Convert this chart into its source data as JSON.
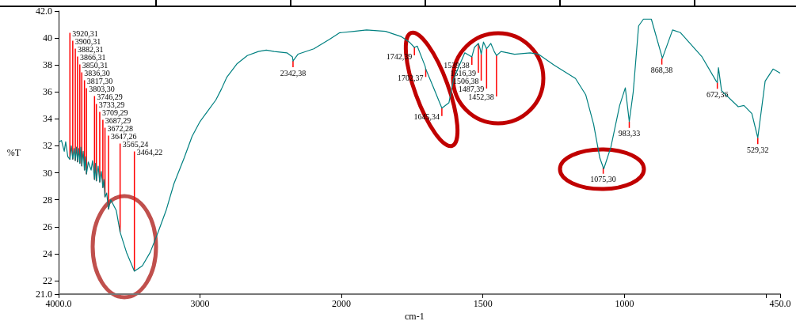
{
  "chart_data": [
    {
      "type": "line",
      "ylabel": "%T",
      "marker": "none",
      "xlim": [
        4000,
        2000
      ],
      "xticks": [
        {
          "value": 4000,
          "label": "4000.0"
        },
        3000
      ],
      "ylim": [
        21,
        42
      ],
      "yticks": [
        {
          "value": 21,
          "label": "21.0"
        },
        22,
        24,
        26,
        28,
        30,
        32,
        34,
        36,
        38,
        40,
        {
          "value": 42,
          "label": "42.0"
        }
      ],
      "series": [
        {
          "color": "#008080",
          "x": [
            3994,
            3980,
            3960,
            3950,
            3935,
            3920,
            3910,
            3900,
            3890,
            3882,
            3874,
            3866,
            3858,
            3850,
            3843,
            3836,
            3826,
            3817,
            3810,
            3803,
            3790,
            3770,
            3760,
            3746,
            3740,
            3733,
            3720,
            3709,
            3698,
            3687,
            3680,
            3672,
            3660,
            3647,
            3631,
            3592,
            3565,
            3520,
            3464,
            3408,
            3352,
            3296,
            3240,
            3184,
            3112,
            3056,
            3000,
            2944,
            2888,
            2849,
            2810,
            2737,
            2665,
            2587,
            2531,
            2475,
            2385,
            2346,
            2342,
            2307,
            2195,
            2084,
            2011,
            2000
          ],
          "values": [
            32.3,
            32.4,
            31.6,
            32.3,
            31.2,
            31.0,
            32.0,
            31.0,
            31.8,
            30.9,
            31.9,
            30.8,
            31.8,
            30.7,
            31.9,
            30.5,
            31.6,
            30.2,
            31.2,
            29.9,
            30.8,
            30.2,
            30.9,
            29.5,
            30.7,
            29.4,
            30.5,
            29.3,
            30.1,
            28.9,
            29.5,
            28.2,
            28.5,
            27.3,
            28.0,
            27.2,
            25.6,
            24.1,
            22.7,
            23.1,
            24.1,
            25.6,
            27.2,
            29.2,
            31.1,
            32.7,
            33.8,
            34.6,
            35.4,
            36.2,
            37.1,
            38.1,
            38.7,
            39.0,
            39.1,
            39.0,
            38.9,
            38.6,
            38.3,
            38.8,
            39.2,
            39.9,
            40.4,
            40.4
          ]
        }
      ],
      "annotations": [
        {
          "text": "3920,31",
          "x": 3920,
          "y": 31.0
        },
        {
          "text": "3900,31",
          "x": 3900,
          "y": 31.0
        },
        {
          "text": "3882,31",
          "x": 3882,
          "y": 30.9
        },
        {
          "text": "3866,31",
          "x": 3866,
          "y": 30.8
        },
        {
          "text": "3850,31",
          "x": 3850,
          "y": 30.7
        },
        {
          "text": "3836,30",
          "x": 3836,
          "y": 30.5
        },
        {
          "text": "3817,30",
          "x": 3817,
          "y": 30.2
        },
        {
          "text": "3803,30",
          "x": 3803,
          "y": 29.9
        },
        {
          "text": "3746,29",
          "x": 3746,
          "y": 29.5
        },
        {
          "text": "3733,29",
          "x": 3733,
          "y": 29.4
        },
        {
          "text": "3709,29",
          "x": 3709,
          "y": 29.3
        },
        {
          "text": "3687,29",
          "x": 3687,
          "y": 28.9
        },
        {
          "text": "3672,28",
          "x": 3672,
          "y": 28.2
        },
        {
          "text": "3647,26",
          "x": 3647,
          "y": 27.3
        },
        {
          "text": "3565,24",
          "x": 3565,
          "y": 25.6
        },
        {
          "text": "3464,22",
          "x": 3464,
          "y": 22.7
        },
        {
          "text": "2342,38",
          "x": 2342,
          "y": 38.3
        }
      ]
    },
    {
      "type": "line",
      "xlabel": "cm-1",
      "marker": "none",
      "tick_labels": "x",
      "xlim": [
        2000,
        450
      ],
      "xticks": [
        2000,
        1500,
        1000,
        {
          "value": 500,
          "label": null
        },
        {
          "value": 450,
          "label": "450.0"
        }
      ],
      "ylim": [
        21,
        42
      ],
      "series": [
        {
          "color": "#008080",
          "x": [
            2000,
            1955,
            1911,
            1844,
            1788,
            1760,
            1742,
            1732,
            1704,
            1702,
            1676,
            1645,
            1620,
            1603,
            1564,
            1539,
            1530,
            1516,
            1510,
            1506,
            1498,
            1487,
            1472,
            1460,
            1452,
            1436,
            1388,
            1333,
            1304,
            1249,
            1173,
            1137,
            1109,
            1087,
            1075,
            1073,
            1048,
            1017,
            997,
            983,
            969,
            950,
            933,
            905,
            866,
            830,
            802,
            726,
            676,
            672,
            668,
            657,
            598,
            578,
            550,
            529,
            503,
            475,
            450
          ],
          "values": [
            40.4,
            40.5,
            40.6,
            40.5,
            40.1,
            39.7,
            39.3,
            39.4,
            37.9,
            37.7,
            36.4,
            34.8,
            35.2,
            37.0,
            38.9,
            38.6,
            39.3,
            39.6,
            39.2,
            38.8,
            39.7,
            39.2,
            39.6,
            39.0,
            38.7,
            39.0,
            38.8,
            38.9,
            38.8,
            38.0,
            37.0,
            35.8,
            33.6,
            31.1,
            30.4,
            30.3,
            31.9,
            35.0,
            36.3,
            33.8,
            36.0,
            40.9,
            41.4,
            41.4,
            38.5,
            40.6,
            40.4,
            38.6,
            36.8,
            36.7,
            37.8,
            36.1,
            34.9,
            35.0,
            34.4,
            32.6,
            36.8,
            37.7,
            37.4
          ]
        }
      ],
      "annotations": [
        {
          "text": "1742,39",
          "x": 1742,
          "y": 39.3
        },
        {
          "text": "1702,37",
          "x": 1702,
          "y": 37.7
        },
        {
          "text": "1645,34",
          "x": 1645,
          "y": 34.8
        },
        {
          "text": "1539,38",
          "x": 1539,
          "y": 38.6
        },
        {
          "text": "1516,39",
          "x": 1516,
          "y": 39.6
        },
        {
          "text": "1506,38",
          "x": 1506,
          "y": 38.8
        },
        {
          "text": "1487,39",
          "x": 1487,
          "y": 39.2
        },
        {
          "text": "1452,38",
          "x": 1452,
          "y": 38.7
        },
        {
          "text": "1075,30",
          "x": 1075,
          "y": 30.4
        },
        {
          "text": "983,33",
          "x": 983,
          "y": 33.8
        },
        {
          "text": "868,38",
          "x": 868,
          "y": 38.5
        },
        {
          "text": "672,36",
          "x": 672,
          "y": 36.7
        },
        {
          "text": "529,32",
          "x": 529,
          "y": 32.6
        }
      ]
    }
  ]
}
